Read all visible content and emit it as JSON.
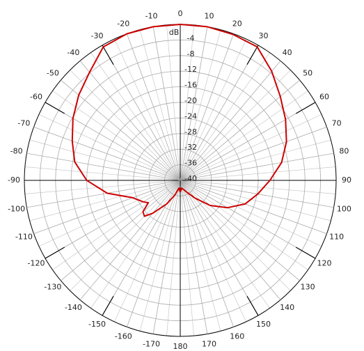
{
  "chart_data": {
    "type": "polar",
    "r_unit": "dB",
    "rlim": [
      -40,
      0
    ],
    "rticks": [
      -4,
      -8,
      -12,
      -16,
      -20,
      -24,
      -28,
      -32,
      -36,
      -40
    ],
    "thetaticks": [
      -170,
      -160,
      -150,
      -140,
      -130,
      -120,
      -110,
      -100,
      -90,
      -80,
      -70,
      -60,
      -50,
      -40,
      -30,
      -20,
      -10,
      0,
      10,
      20,
      30,
      40,
      50,
      60,
      70,
      80,
      90,
      100,
      110,
      120,
      130,
      140,
      150,
      160,
      170,
      180
    ],
    "theta": [
      -180,
      -170,
      -160,
      -150,
      -140,
      -135,
      -130,
      -125,
      -120,
      -110,
      -100,
      -90,
      -80,
      -70,
      -60,
      -50,
      -40,
      -30,
      -20,
      -10,
      0,
      10,
      20,
      30,
      40,
      50,
      60,
      70,
      80,
      90,
      100,
      110,
      120,
      130,
      140,
      150,
      160,
      170,
      180
    ],
    "series": [
      {
        "color": "#cc0000",
        "values": [
          -37,
          -38,
          -36,
          -33,
          -29,
          -27,
          -27.5,
          -30,
          -29,
          -27,
          -21,
          -16,
          -12.5,
          -10.5,
          -8.2,
          -6,
          -3.8,
          -0.5,
          0,
          0,
          0,
          0,
          -0.2,
          -0.5,
          -3.5,
          -6.5,
          -8.8,
          -11,
          -13.6,
          -17,
          -19.8,
          -22.3,
          -26,
          -30,
          -34,
          -36.4,
          -37.5,
          -38,
          -37
        ]
      }
    ],
    "grid": true
  }
}
